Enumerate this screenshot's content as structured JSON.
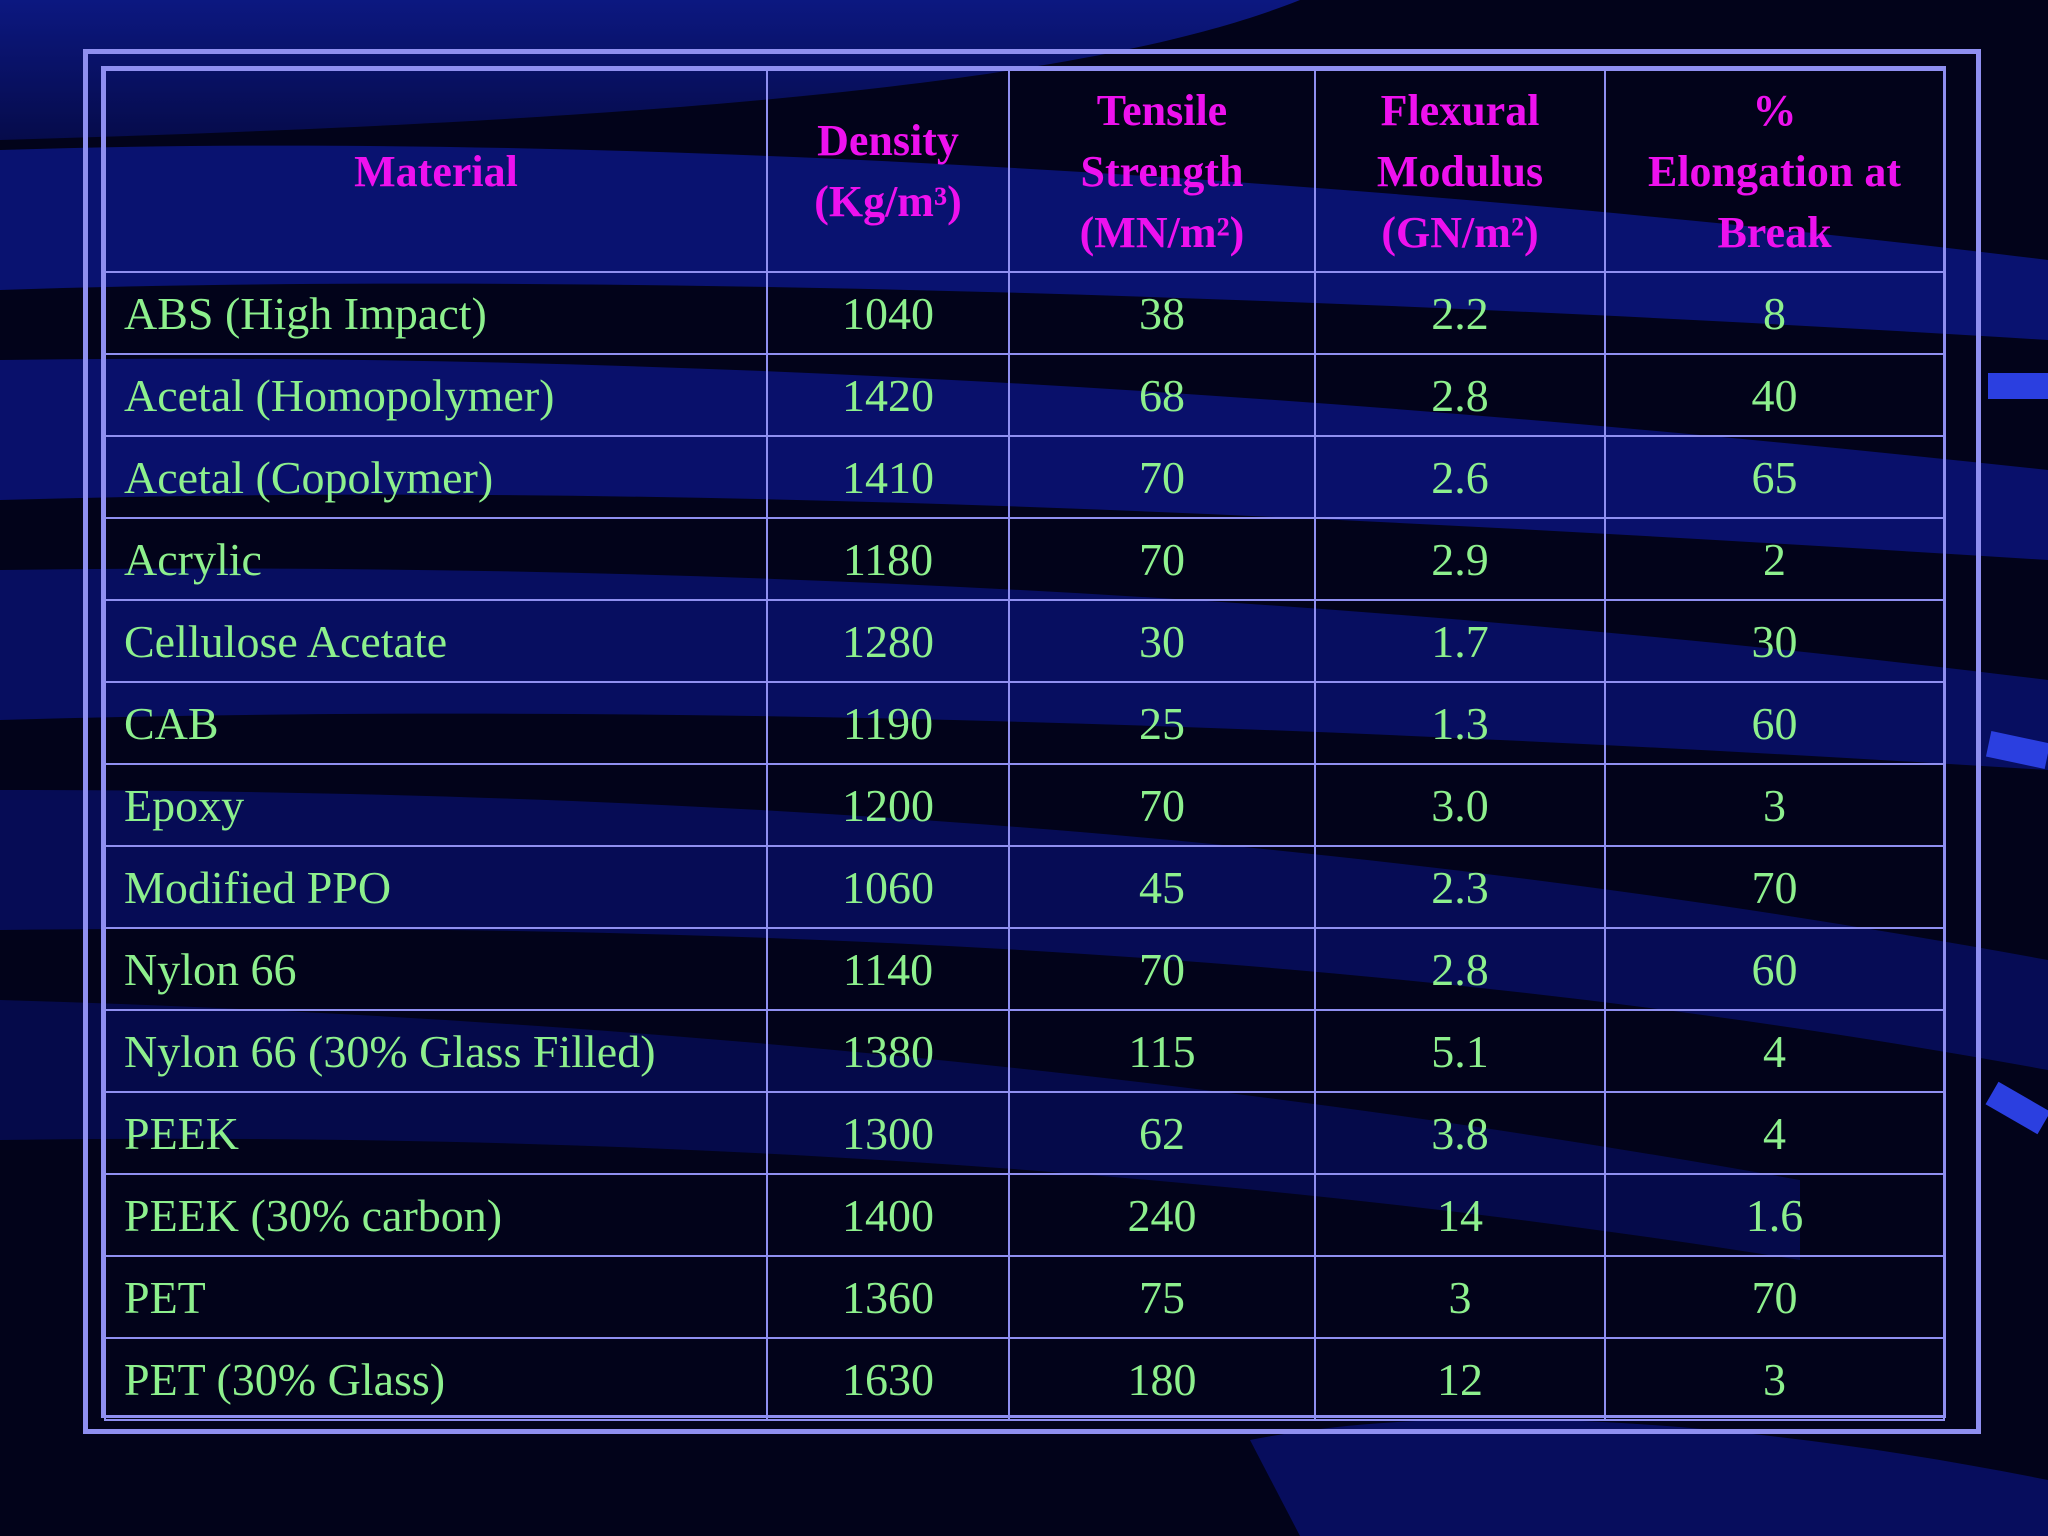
{
  "table": {
    "headers": [
      [
        "Material"
      ],
      [
        "Density",
        "(Kg/m³)"
      ],
      [
        "Tensile",
        "Strength",
        "(MN/m²)"
      ],
      [
        "Flexural",
        "Modulus",
        "(GN/m²)"
      ],
      [
        "%",
        "Elongation at",
        "Break"
      ]
    ],
    "rows": [
      [
        "ABS (High Impact)",
        "1040",
        "38",
        "2.2",
        "8"
      ],
      [
        "Acetal (Homopolymer)",
        "1420",
        "68",
        "2.8",
        "40"
      ],
      [
        "Acetal (Copolymer)",
        "1410",
        "70",
        "2.6",
        "65"
      ],
      [
        "Acrylic",
        "1180",
        "70",
        "2.9",
        "2"
      ],
      [
        "Cellulose Acetate",
        "1280",
        "30",
        "1.7",
        "30"
      ],
      [
        "CAB",
        "1190",
        "25",
        "1.3",
        "60"
      ],
      [
        "Epoxy",
        "1200",
        "70",
        "3.0",
        "3"
      ],
      [
        "Modified PPO",
        "1060",
        "45",
        "2.3",
        "70"
      ],
      [
        "Nylon 66",
        "1140",
        "70",
        "2.8",
        "60"
      ],
      [
        "Nylon 66 (30% Glass Filled)",
        "1380",
        "115",
        "5.1",
        "4"
      ],
      [
        "PEEK",
        "1300",
        "62",
        "3.8",
        "4"
      ],
      [
        "PEEK (30% carbon)",
        "1400",
        "240",
        "14",
        "1.6"
      ],
      [
        "PET",
        "1360",
        "75",
        "3",
        "70"
      ],
      [
        "PET (30% Glass)",
        "1630",
        "180",
        "12",
        "3"
      ]
    ]
  },
  "colors": {
    "background": "#02031a",
    "band": "#0b1580",
    "border": "#8f8ff0",
    "header_text": "#ee11ee",
    "body_text": "#8df08d",
    "accent_tab": "#2b3fe0"
  }
}
